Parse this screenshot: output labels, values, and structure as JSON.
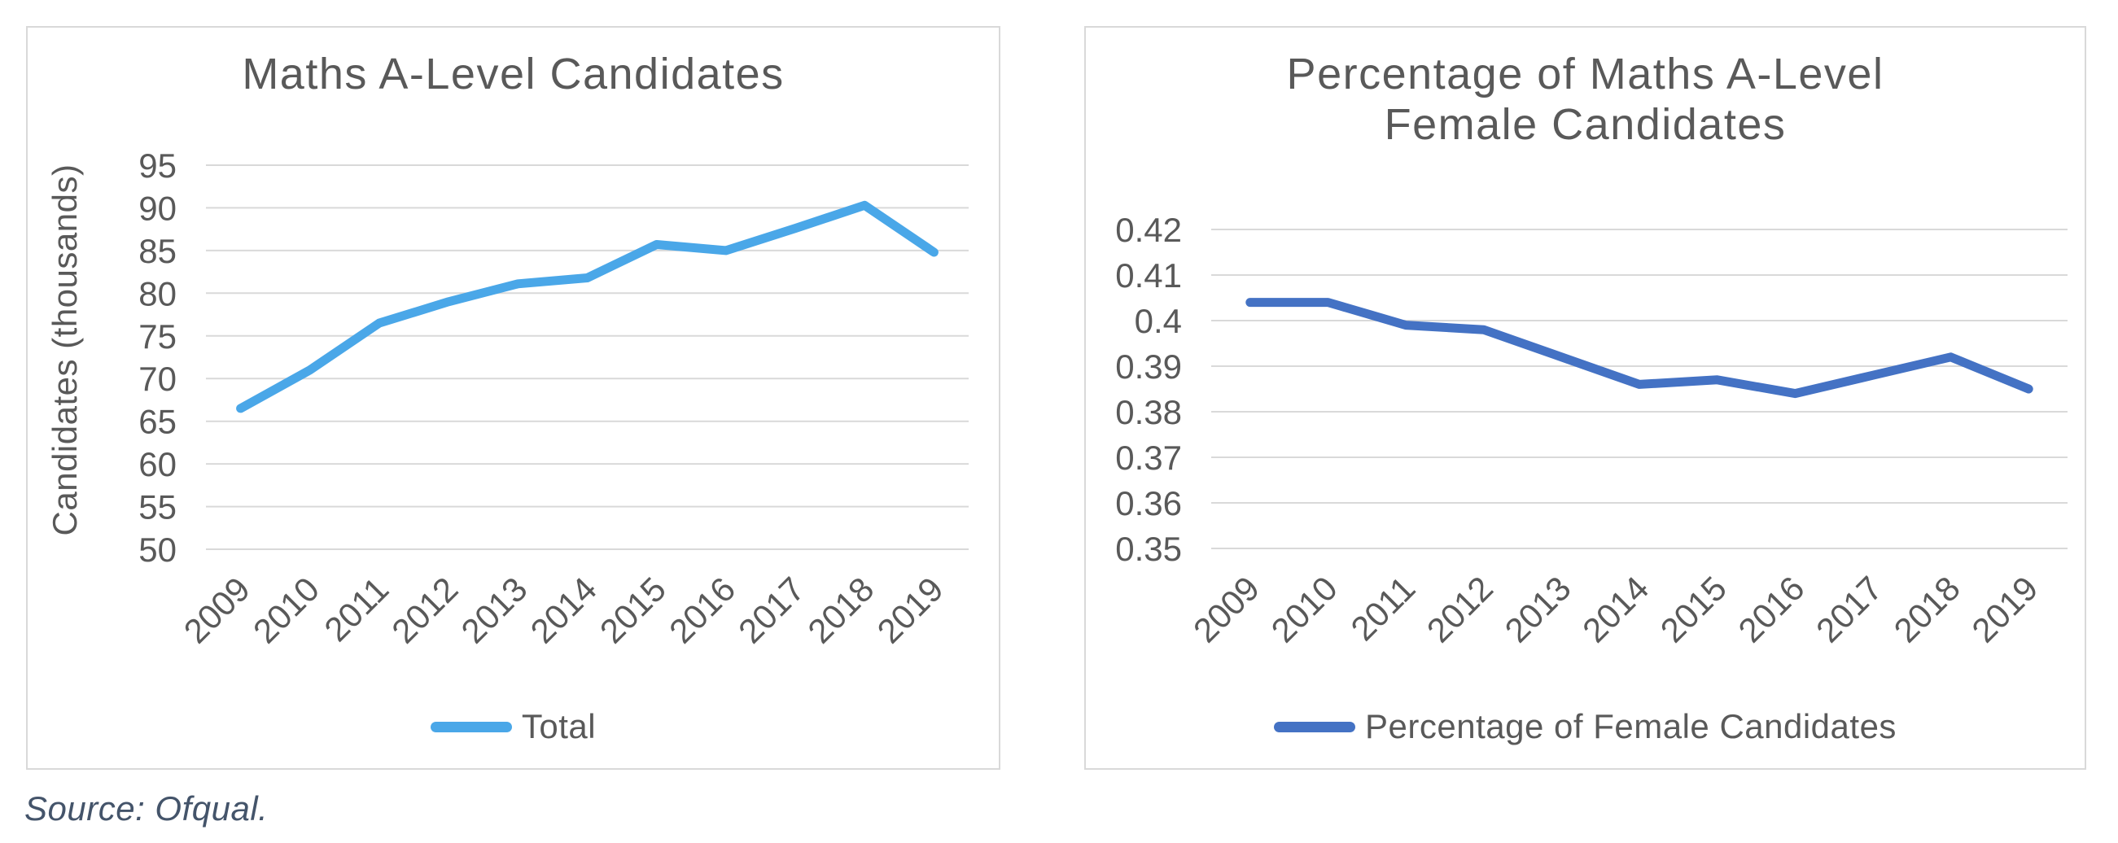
{
  "page": {
    "background": "#ffffff"
  },
  "source_note": "Source: Ofqual.",
  "colors": {
    "grid": "#D9D9D9",
    "card_border": "#D9D9D9",
    "text": "#595959",
    "source_text": "#44546A",
    "left_line": "#4AA7E8",
    "right_line": "#4472C4"
  },
  "chart_data": [
    {
      "type": "line",
      "title": "Maths A-Level Candidates",
      "title_lines": [
        "Maths A-Level Candidates"
      ],
      "ylabel": "Candidates (thousands)",
      "xlabel": "",
      "categories": [
        "2009",
        "2010",
        "2011",
        "2012",
        "2013",
        "2014",
        "2015",
        "2016",
        "2017",
        "2018",
        "2019"
      ],
      "series": [
        {
          "name": "Total",
          "values": [
            66.5,
            71.0,
            76.5,
            79.0,
            81.1,
            81.8,
            85.7,
            85.0,
            87.6,
            90.3,
            84.8
          ]
        }
      ],
      "ylim": [
        50,
        95
      ],
      "y_tick_labels": [
        "95",
        "90",
        "85",
        "80",
        "75",
        "70",
        "65",
        "60",
        "55",
        "50"
      ],
      "grid": true,
      "legend_position": "bottom",
      "line_color": "#4AA7E8"
    },
    {
      "type": "line",
      "title": "Percentage of Maths A-Level Female Candidates",
      "title_lines": [
        "Percentage of Maths A-Level",
        "Female Candidates"
      ],
      "ylabel": "",
      "xlabel": "",
      "categories": [
        "2009",
        "2010",
        "2011",
        "2012",
        "2013",
        "2014",
        "2015",
        "2016",
        "2017",
        "2018",
        "2019"
      ],
      "series": [
        {
          "name": "Percentage of Female Candidates",
          "values": [
            0.404,
            0.404,
            0.399,
            0.398,
            0.392,
            0.386,
            0.387,
            0.384,
            0.388,
            0.392,
            0.385
          ]
        }
      ],
      "ylim": [
        0.35,
        0.42
      ],
      "y_tick_labels": [
        "0.42",
        "0.41",
        "0.4",
        "0.39",
        "0.38",
        "0.37",
        "0.36",
        "0.35"
      ],
      "grid": true,
      "legend_position": "bottom",
      "line_color": "#4472C4"
    }
  ]
}
